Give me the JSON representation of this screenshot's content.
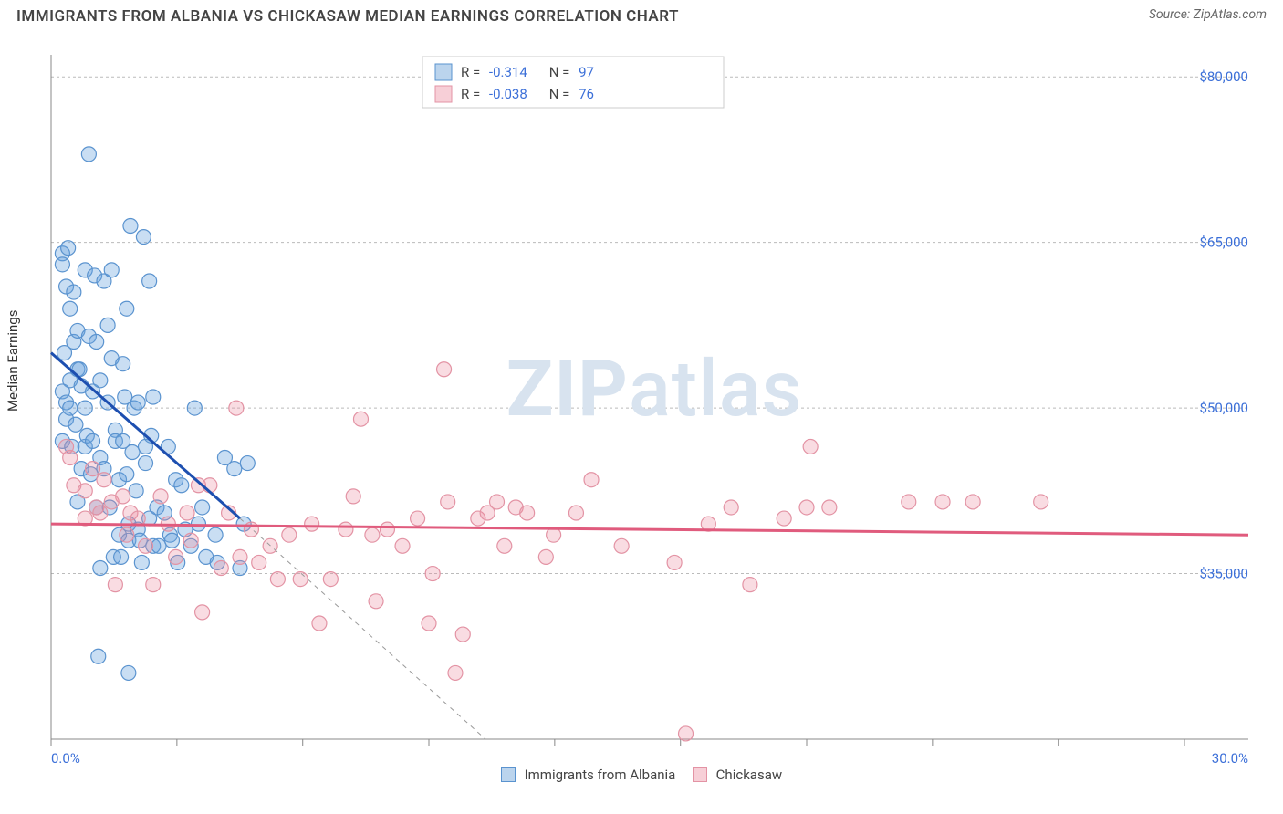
{
  "title": "IMMIGRANTS FROM ALBANIA VS CHICKASAW MEDIAN EARNINGS CORRELATION CHART",
  "source_label": "Source:",
  "source_name": "ZipAtlas.com",
  "ylabel": "Median Earnings",
  "watermark_left": "ZIP",
  "watermark_right": "atlas",
  "chart": {
    "type": "scatter",
    "xlim": [
      0,
      30
    ],
    "ylim": [
      20000,
      82000
    ],
    "x_tick_positions": [
      0,
      3.33,
      6.66,
      10,
      13.33,
      16.66,
      20,
      23.33,
      26.66,
      30
    ],
    "x_tick_labels_shown": {
      "0": "0.0%",
      "30": "30.0%"
    },
    "y_tick_positions": [
      35000,
      50000,
      65000,
      80000
    ],
    "y_tick_labels": [
      "$35,000",
      "$50,000",
      "$65,000",
      "$80,000"
    ],
    "grid_color": "#bbbbbb",
    "background_color": "#ffffff",
    "marker_radius": 8,
    "series": [
      {
        "id": "albania",
        "label": "Immigrants from Albania",
        "R": "-0.314",
        "N": "97",
        "color_fill": "rgba(100,160,220,0.35)",
        "color_stroke": "#5a93cf",
        "trend": {
          "x1": 0,
          "y1": 55000,
          "x2": 5,
          "y2": 40000,
          "ext_x2": 11.5,
          "ext_y2": 20000,
          "color": "#1d4fb0"
        },
        "points": [
          [
            0.3,
            47000
          ],
          [
            0.3,
            51500
          ],
          [
            0.3,
            64000
          ],
          [
            0.3,
            63000
          ],
          [
            0.35,
            55000
          ],
          [
            0.4,
            61000
          ],
          [
            0.4,
            50500
          ],
          [
            0.4,
            49000
          ],
          [
            0.45,
            64500
          ],
          [
            0.5,
            50000
          ],
          [
            0.5,
            52500
          ],
          [
            0.5,
            59000
          ],
          [
            0.55,
            46500
          ],
          [
            0.6,
            56000
          ],
          [
            0.6,
            60500
          ],
          [
            0.65,
            48500
          ],
          [
            0.7,
            53500
          ],
          [
            0.7,
            57000
          ],
          [
            0.7,
            41500
          ],
          [
            0.75,
            53500
          ],
          [
            0.8,
            44500
          ],
          [
            0.8,
            52000
          ],
          [
            0.9,
            62500
          ],
          [
            0.9,
            50000
          ],
          [
            0.9,
            46500
          ],
          [
            0.95,
            47500
          ],
          [
            1.0,
            73000
          ],
          [
            1.0,
            56500
          ],
          [
            1.05,
            44000
          ],
          [
            1.1,
            47000
          ],
          [
            1.1,
            51500
          ],
          [
            1.15,
            62000
          ],
          [
            1.2,
            56000
          ],
          [
            1.2,
            41000
          ],
          [
            1.3,
            52500
          ],
          [
            1.3,
            45500
          ],
          [
            1.3,
            35500
          ],
          [
            1.4,
            61500
          ],
          [
            1.4,
            44500
          ],
          [
            1.5,
            50500
          ],
          [
            1.5,
            57500
          ],
          [
            1.55,
            41000
          ],
          [
            1.6,
            54500
          ],
          [
            1.6,
            62500
          ],
          [
            1.65,
            36500
          ],
          [
            1.7,
            48000
          ],
          [
            1.7,
            47000
          ],
          [
            1.8,
            43500
          ],
          [
            1.8,
            38500
          ],
          [
            1.9,
            47000
          ],
          [
            1.9,
            54000
          ],
          [
            1.95,
            51000
          ],
          [
            2.0,
            44000
          ],
          [
            2.0,
            59000
          ],
          [
            2.05,
            39500
          ],
          [
            2.05,
            38000
          ],
          [
            2.1,
            66500
          ],
          [
            2.15,
            46000
          ],
          [
            2.2,
            50000
          ],
          [
            2.25,
            42500
          ],
          [
            2.3,
            50500
          ],
          [
            2.3,
            39000
          ],
          [
            2.35,
            38000
          ],
          [
            2.45,
            65500
          ],
          [
            2.5,
            45000
          ],
          [
            2.5,
            46500
          ],
          [
            2.6,
            61500
          ],
          [
            2.6,
            40000
          ],
          [
            2.65,
            47500
          ],
          [
            2.7,
            51000
          ],
          [
            2.7,
            37500
          ],
          [
            2.8,
            41000
          ],
          [
            2.85,
            37500
          ],
          [
            1.25,
            27500
          ],
          [
            2.05,
            26000
          ],
          [
            3.0,
            40500
          ],
          [
            3.1,
            46500
          ],
          [
            3.15,
            38500
          ],
          [
            3.2,
            38000
          ],
          [
            3.3,
            43500
          ],
          [
            3.35,
            36000
          ],
          [
            3.45,
            43000
          ],
          [
            3.55,
            39000
          ],
          [
            3.7,
            37500
          ],
          [
            3.8,
            50000
          ],
          [
            3.9,
            39500
          ],
          [
            4.0,
            41000
          ],
          [
            4.1,
            36500
          ],
          [
            4.35,
            38500
          ],
          [
            4.4,
            36000
          ],
          [
            4.6,
            45500
          ],
          [
            4.85,
            44500
          ],
          [
            5.1,
            39500
          ],
          [
            5.0,
            35500
          ],
          [
            5.2,
            45000
          ],
          [
            1.85,
            36500
          ],
          [
            2.4,
            36000
          ]
        ]
      },
      {
        "id": "chickasaw",
        "label": "Chickasaw",
        "R": "-0.038",
        "N": "76",
        "color_fill": "rgba(235,140,160,0.30)",
        "color_stroke": "#e393a4",
        "trend": {
          "x1": 0,
          "y1": 39500,
          "x2": 30,
          "y2": 38500,
          "color": "#e05b7d"
        },
        "points": [
          [
            0.4,
            46500
          ],
          [
            0.5,
            45500
          ],
          [
            0.6,
            43000
          ],
          [
            0.9,
            42500
          ],
          [
            0.9,
            40000
          ],
          [
            1.1,
            44500
          ],
          [
            1.2,
            41000
          ],
          [
            1.3,
            40500
          ],
          [
            1.4,
            43500
          ],
          [
            1.6,
            41500
          ],
          [
            1.7,
            34000
          ],
          [
            1.9,
            42000
          ],
          [
            2.0,
            38500
          ],
          [
            2.1,
            40500
          ],
          [
            2.3,
            40000
          ],
          [
            2.5,
            37500
          ],
          [
            2.7,
            34000
          ],
          [
            2.9,
            42000
          ],
          [
            3.1,
            39500
          ],
          [
            3.3,
            36500
          ],
          [
            3.6,
            40500
          ],
          [
            3.7,
            38000
          ],
          [
            3.9,
            43000
          ],
          [
            4.0,
            31500
          ],
          [
            4.2,
            43000
          ],
          [
            4.5,
            35500
          ],
          [
            4.7,
            40500
          ],
          [
            4.9,
            50000
          ],
          [
            5.0,
            36500
          ],
          [
            5.3,
            39000
          ],
          [
            5.5,
            36000
          ],
          [
            5.8,
            37500
          ],
          [
            6.0,
            34500
          ],
          [
            6.3,
            38500
          ],
          [
            6.6,
            34500
          ],
          [
            6.9,
            39500
          ],
          [
            7.1,
            30500
          ],
          [
            7.4,
            34500
          ],
          [
            7.8,
            39000
          ],
          [
            8.0,
            42000
          ],
          [
            8.2,
            49000
          ],
          [
            8.5,
            38500
          ],
          [
            8.6,
            32500
          ],
          [
            8.9,
            39000
          ],
          [
            9.3,
            37500
          ],
          [
            9.7,
            40000
          ],
          [
            10.0,
            30500
          ],
          [
            10.1,
            35000
          ],
          [
            10.4,
            53500
          ],
          [
            10.5,
            41500
          ],
          [
            10.7,
            26000
          ],
          [
            10.9,
            29500
          ],
          [
            11.3,
            40000
          ],
          [
            11.55,
            40500
          ],
          [
            11.8,
            41500
          ],
          [
            12.0,
            37500
          ],
          [
            12.3,
            41000
          ],
          [
            12.6,
            40500
          ],
          [
            13.1,
            36500
          ],
          [
            13.3,
            38500
          ],
          [
            13.9,
            40500
          ],
          [
            14.3,
            43500
          ],
          [
            15.1,
            37500
          ],
          [
            16.5,
            36000
          ],
          [
            16.8,
            20500
          ],
          [
            17.4,
            39500
          ],
          [
            18.0,
            41000
          ],
          [
            19.4,
            40000
          ],
          [
            20.0,
            41000
          ],
          [
            20.1,
            46500
          ],
          [
            20.6,
            41000
          ],
          [
            22.7,
            41500
          ],
          [
            23.6,
            41500
          ],
          [
            18.5,
            34000
          ],
          [
            24.4,
            41500
          ],
          [
            26.2,
            41500
          ]
        ]
      }
    ]
  },
  "legend_top": {
    "row1": {
      "R_label": "R =",
      "R_val": "-0.314",
      "N_label": "N =",
      "N_val": "97"
    },
    "row2": {
      "R_label": "R =",
      "R_val": "-0.038",
      "N_label": "N =",
      "N_val": "76"
    }
  }
}
